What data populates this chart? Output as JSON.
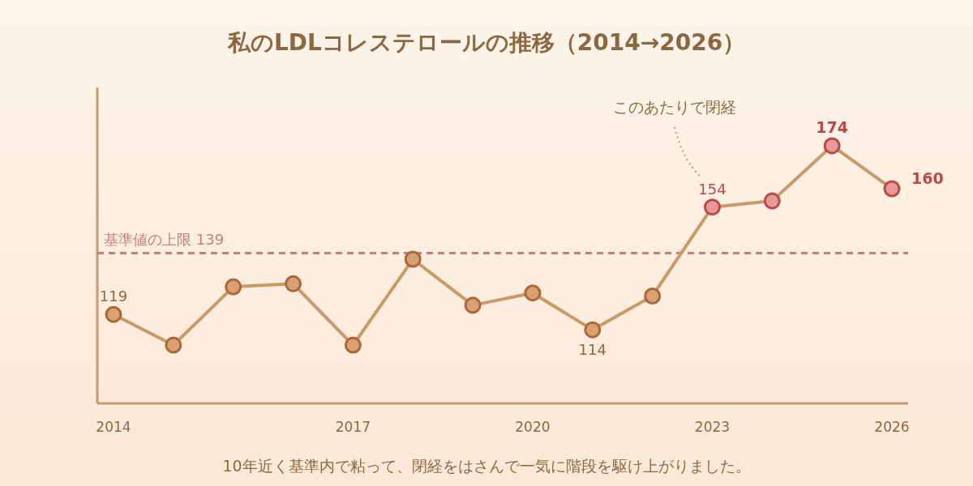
{
  "chart_data": {
    "type": "line",
    "title": "私のLDLコレステロールの推移（2014→2026）",
    "categories": [
      "2014",
      null,
      null,
      null,
      "2017",
      null,
      null,
      "2020",
      null,
      null,
      "2023",
      null,
      null,
      "2026"
    ],
    "series": [
      {
        "color": "#c89a68",
        "values": [
          119,
          109,
          128,
          129,
          109,
          137,
          122,
          126,
          114,
          125,
          154,
          156,
          174,
          160
        ],
        "colors": [
          "#dba071",
          "#dba071",
          "#dba071",
          "#dba071",
          "#dba071",
          "#dba071",
          "#dba071",
          "#dba071",
          "#dba071",
          "#dba071",
          "#e8999a",
          "#e8999a",
          "#e8999a",
          "#e8999a"
        ],
        "value_labels": [
          "119",
          null,
          null,
          null,
          null,
          null,
          null,
          null,
          "114",
          null,
          "154",
          null,
          "174",
          "160"
        ]
      }
    ],
    "ylim": [
      90,
      193
    ],
    "marker": "circle",
    "line_style": "solid",
    "ref_lines": [
      {
        "axis": "y",
        "value": 139,
        "label": "基準値の上限 139",
        "color": "#cc7a80",
        "line_style": "dashed"
      }
    ],
    "annotations": [
      "このあたりで閉経",
      "10年近く基準内で粘って、閉経をはさんで一気に階段を駆け上がりました。"
    ]
  }
}
